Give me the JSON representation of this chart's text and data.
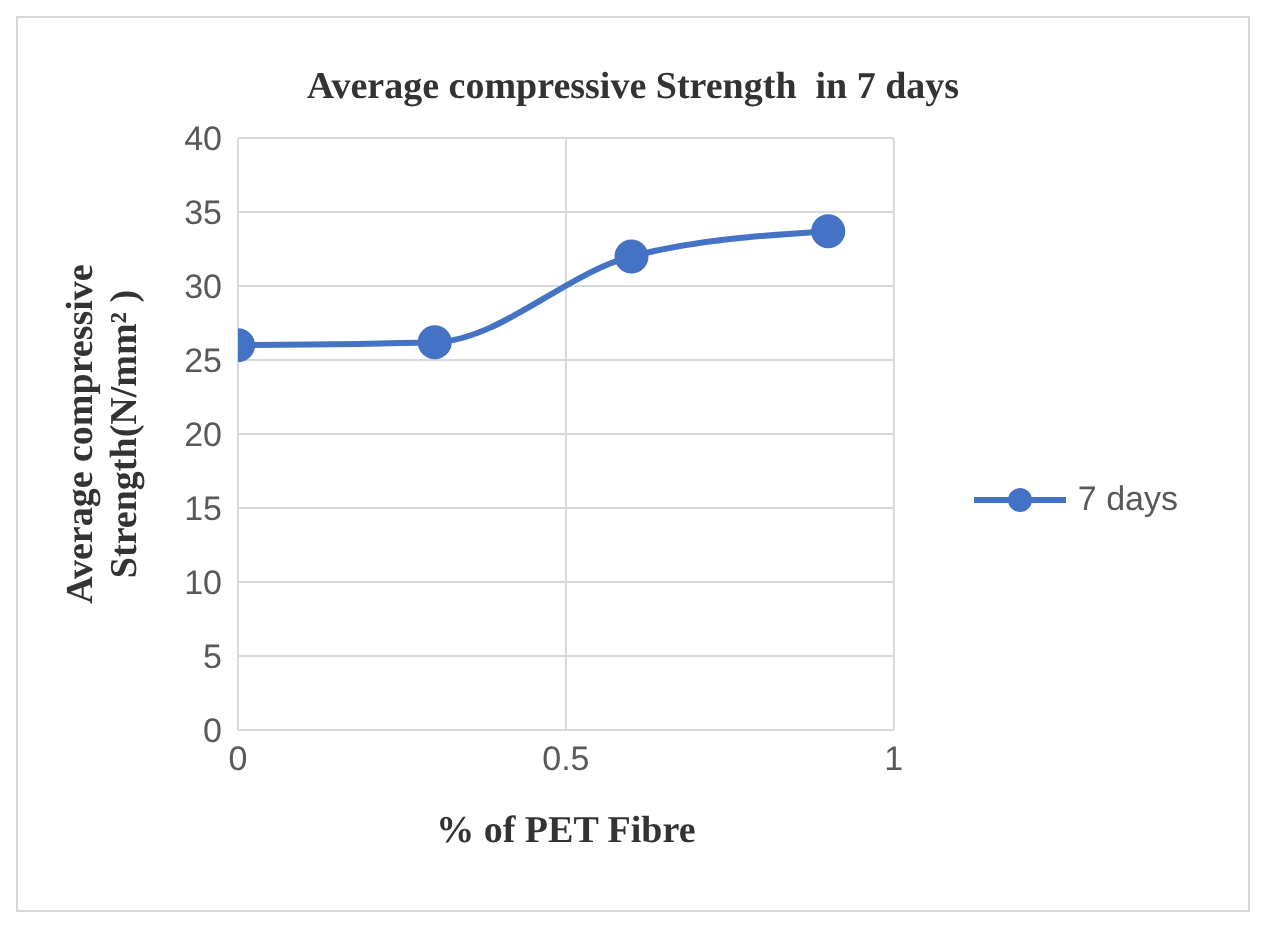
{
  "chart_data": {
    "type": "line",
    "title": "Average compressive Strength  in 7 days",
    "xlabel": "% of PET Fibre",
    "ylabel": "Average compressive Strength(N/mm² )",
    "x": [
      0,
      0.3,
      0.6,
      0.9
    ],
    "series": [
      {
        "name": "7 days",
        "color": "#4472c4",
        "values": [
          26,
          26.2,
          32,
          33.7
        ]
      }
    ],
    "xlim": [
      0,
      1
    ],
    "xticks": [
      0,
      0.5,
      1
    ],
    "ylim": [
      0,
      40
    ],
    "yticks": [
      0,
      5,
      10,
      15,
      20,
      25,
      30,
      35,
      40
    ],
    "grid": true,
    "legend": "right",
    "marker": "circle",
    "line_style": "solid"
  }
}
